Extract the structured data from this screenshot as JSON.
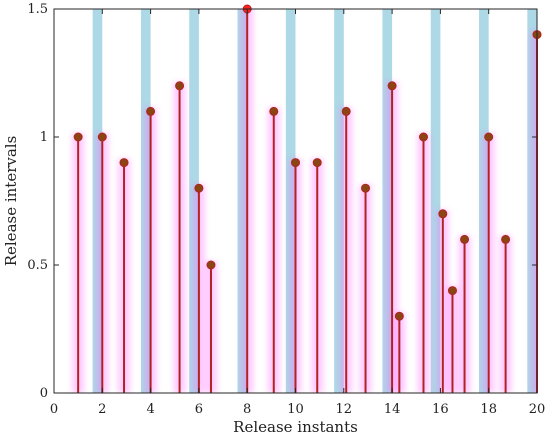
{
  "chart_data": {
    "type": "stem",
    "title": "",
    "xlabel": "Release instants",
    "ylabel": "Release intervals",
    "xlim": [
      0,
      20
    ],
    "ylim": [
      0,
      1.5
    ],
    "xticks": [
      0,
      2,
      4,
      6,
      8,
      10,
      12,
      14,
      16,
      18,
      20
    ],
    "yticks": [
      0,
      0.5,
      1,
      1.5
    ],
    "ytick_labels": [
      "0",
      "0.5",
      "1",
      "1.5"
    ],
    "grid": false,
    "colors": {
      "band": "#add8e6",
      "stem": "#b22222",
      "marker": "#8b4513",
      "highlight_marker": "#ff2020",
      "glow": "#ff66ff"
    },
    "bands": [
      [
        1.6,
        2.0
      ],
      [
        3.6,
        4.0
      ],
      [
        5.6,
        6.0
      ],
      [
        7.6,
        8.0
      ],
      [
        9.6,
        10.0
      ],
      [
        11.6,
        12.0
      ],
      [
        13.6,
        14.0
      ],
      [
        15.6,
        16.0
      ],
      [
        17.6,
        18.0
      ],
      [
        19.6,
        20.0
      ]
    ],
    "points": [
      {
        "x": 1.0,
        "y": 1.0
      },
      {
        "x": 2.0,
        "y": 1.0
      },
      {
        "x": 2.9,
        "y": 0.9
      },
      {
        "x": 4.0,
        "y": 1.1
      },
      {
        "x": 5.2,
        "y": 1.2
      },
      {
        "x": 6.0,
        "y": 0.8
      },
      {
        "x": 6.5,
        "y": 0.5
      },
      {
        "x": 8.0,
        "y": 1.5,
        "highlight": true
      },
      {
        "x": 9.1,
        "y": 1.1
      },
      {
        "x": 10.0,
        "y": 0.9
      },
      {
        "x": 10.9,
        "y": 0.9
      },
      {
        "x": 12.1,
        "y": 1.1
      },
      {
        "x": 12.9,
        "y": 0.8
      },
      {
        "x": 14.0,
        "y": 1.2
      },
      {
        "x": 14.3,
        "y": 0.3
      },
      {
        "x": 15.3,
        "y": 1.0
      },
      {
        "x": 16.1,
        "y": 0.7
      },
      {
        "x": 16.5,
        "y": 0.4
      },
      {
        "x": 17.0,
        "y": 0.6
      },
      {
        "x": 18.0,
        "y": 1.0
      },
      {
        "x": 18.7,
        "y": 0.6
      },
      {
        "x": 20.0,
        "y": 1.4
      }
    ]
  }
}
